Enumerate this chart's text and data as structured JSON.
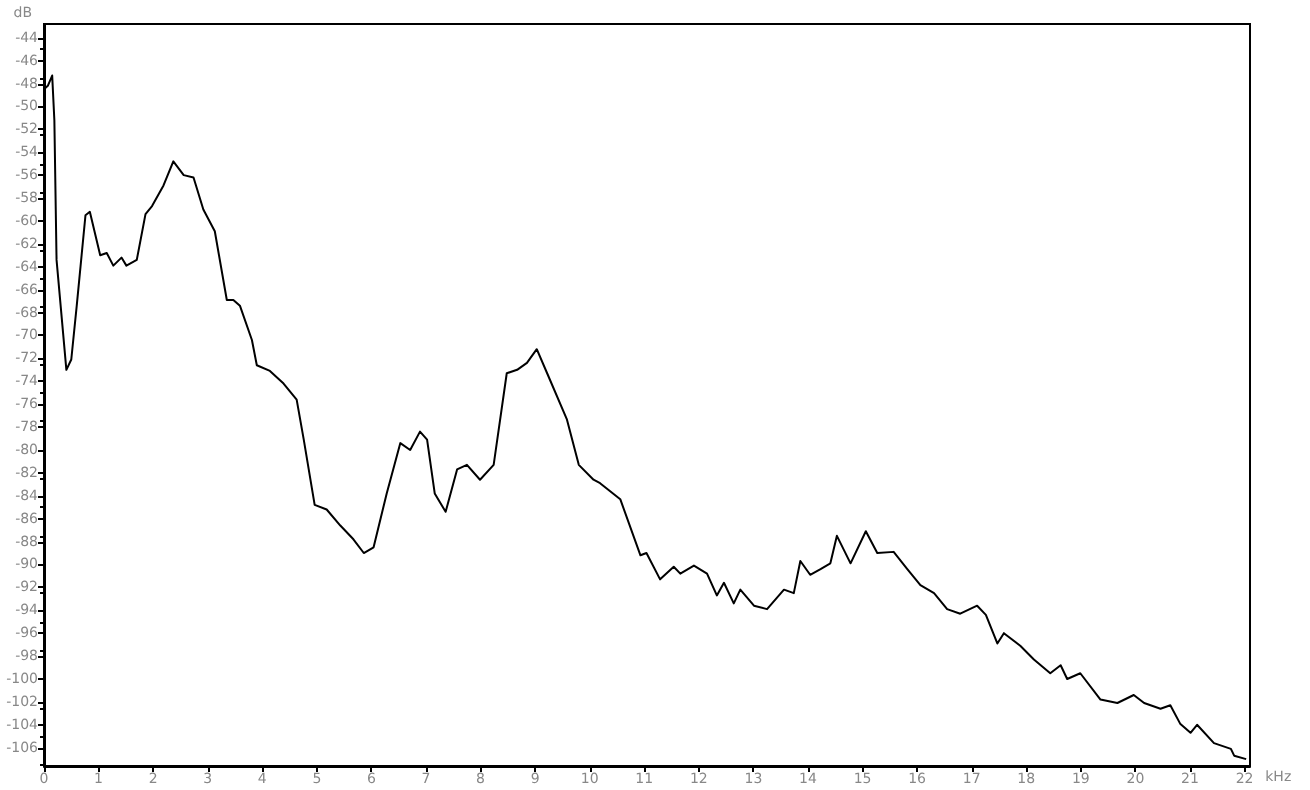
{
  "chart_data": {
    "type": "line",
    "xlabel": "kHz",
    "ylabel": "dB",
    "x": [
      0,
      0.07,
      0.15,
      0.19,
      0.23,
      0.41,
      0.5,
      0.6,
      0.76,
      0.84,
      1.03,
      1.15,
      1.27,
      1.42,
      1.51,
      1.7,
      1.86,
      1.98,
      2.19,
      2.37,
      2.56,
      2.74,
      2.92,
      3.13,
      3.35,
      3.47,
      3.59,
      3.81,
      3.9,
      4.14,
      4.39,
      4.63,
      4.76,
      4.96,
      5.18,
      5.43,
      5.67,
      5.86,
      6.04,
      6.28,
      6.53,
      6.71,
      6.89,
      7.02,
      7.16,
      7.36,
      7.57,
      7.75,
      7.99,
      8.24,
      8.48,
      8.67,
      8.85,
      9.03,
      9.22,
      9.58,
      9.8,
      10.07,
      10.19,
      10.56,
      10.93,
      11.04,
      11.29,
      11.54,
      11.66,
      11.91,
      12.15,
      12.33,
      12.46,
      12.64,
      12.76,
      13.01,
      13.25,
      13.56,
      13.74,
      13.86,
      14.04,
      14.23,
      14.41,
      14.53,
      14.78,
      15.06,
      15.27,
      15.57,
      15.82,
      16.06,
      16.31,
      16.55,
      16.79,
      17.1,
      17.26,
      17.47,
      17.59,
      17.89,
      18.14,
      18.44,
      18.63,
      18.75,
      18.99,
      19.36,
      19.67,
      19.97,
      20.16,
      20.46,
      20.64,
      20.82,
      21.01,
      21.13,
      21.44,
      21.75,
      21.81,
      22.03
    ],
    "series": [
      {
        "color": "#000000",
        "values": [
          -48.5,
          -48.2,
          -47.3,
          -51.2,
          -63.4,
          -73.0,
          -72.1,
          -67.4,
          -59.5,
          -59.2,
          -63.0,
          -62.8,
          -63.9,
          -63.2,
          -63.9,
          -63.4,
          -59.4,
          -58.7,
          -56.9,
          -54.8,
          -56.0,
          -56.2,
          -59.0,
          -60.9,
          -66.9,
          -66.9,
          -67.4,
          -70.4,
          -72.6,
          -73.1,
          -74.2,
          -75.6,
          -79.1,
          -84.8,
          -85.2,
          -86.6,
          -87.8,
          -89.0,
          -88.5,
          -83.8,
          -79.4,
          -80.0,
          -78.4,
          -79.1,
          -83.8,
          -85.4,
          -81.7,
          -81.3,
          -82.6,
          -81.3,
          -73.3,
          -73.0,
          -72.4,
          -71.2,
          -73.3,
          -77.3,
          -81.3,
          -82.6,
          -82.9,
          -84.3,
          -89.2,
          -89.0,
          -91.3,
          -90.2,
          -90.8,
          -90.1,
          -90.8,
          -92.7,
          -91.6,
          -93.4,
          -92.2,
          -93.6,
          -93.9,
          -92.2,
          -92.5,
          -89.7,
          -90.9,
          -90.4,
          -89.9,
          -87.5,
          -89.9,
          -87.1,
          -89.0,
          -88.9,
          -90.4,
          -91.8,
          -92.5,
          -93.9,
          -94.3,
          -93.6,
          -94.4,
          -96.9,
          -96.0,
          -97.1,
          -98.3,
          -99.5,
          -98.8,
          -100.0,
          -99.5,
          -101.8,
          -102.1,
          -101.4,
          -102.1,
          -102.6,
          -102.3,
          -103.9,
          -104.7,
          -104.0,
          -105.6,
          -106.1,
          -106.7,
          -107.0
        ]
      }
    ],
    "xlim": [
      0,
      22.1
    ],
    "xticks": [
      0,
      1,
      2,
      3,
      4,
      5,
      6,
      7,
      8,
      9,
      10,
      11,
      12,
      13,
      14,
      15,
      16,
      17,
      18,
      19,
      20,
      21,
      22
    ],
    "ylim": [
      -107.6,
      -42.8
    ],
    "yticks": [
      -44,
      -46,
      -48,
      -50,
      -52,
      -54,
      -56,
      -58,
      -60,
      -62,
      -64,
      -66,
      -68,
      -70,
      -72,
      -74,
      -76,
      -78,
      -80,
      -82,
      -84,
      -86,
      -88,
      -90,
      -92,
      -94,
      -96,
      -98,
      -100,
      -102,
      -104,
      -106
    ],
    "grid": false,
    "marker": "none",
    "line_style": "solid"
  }
}
